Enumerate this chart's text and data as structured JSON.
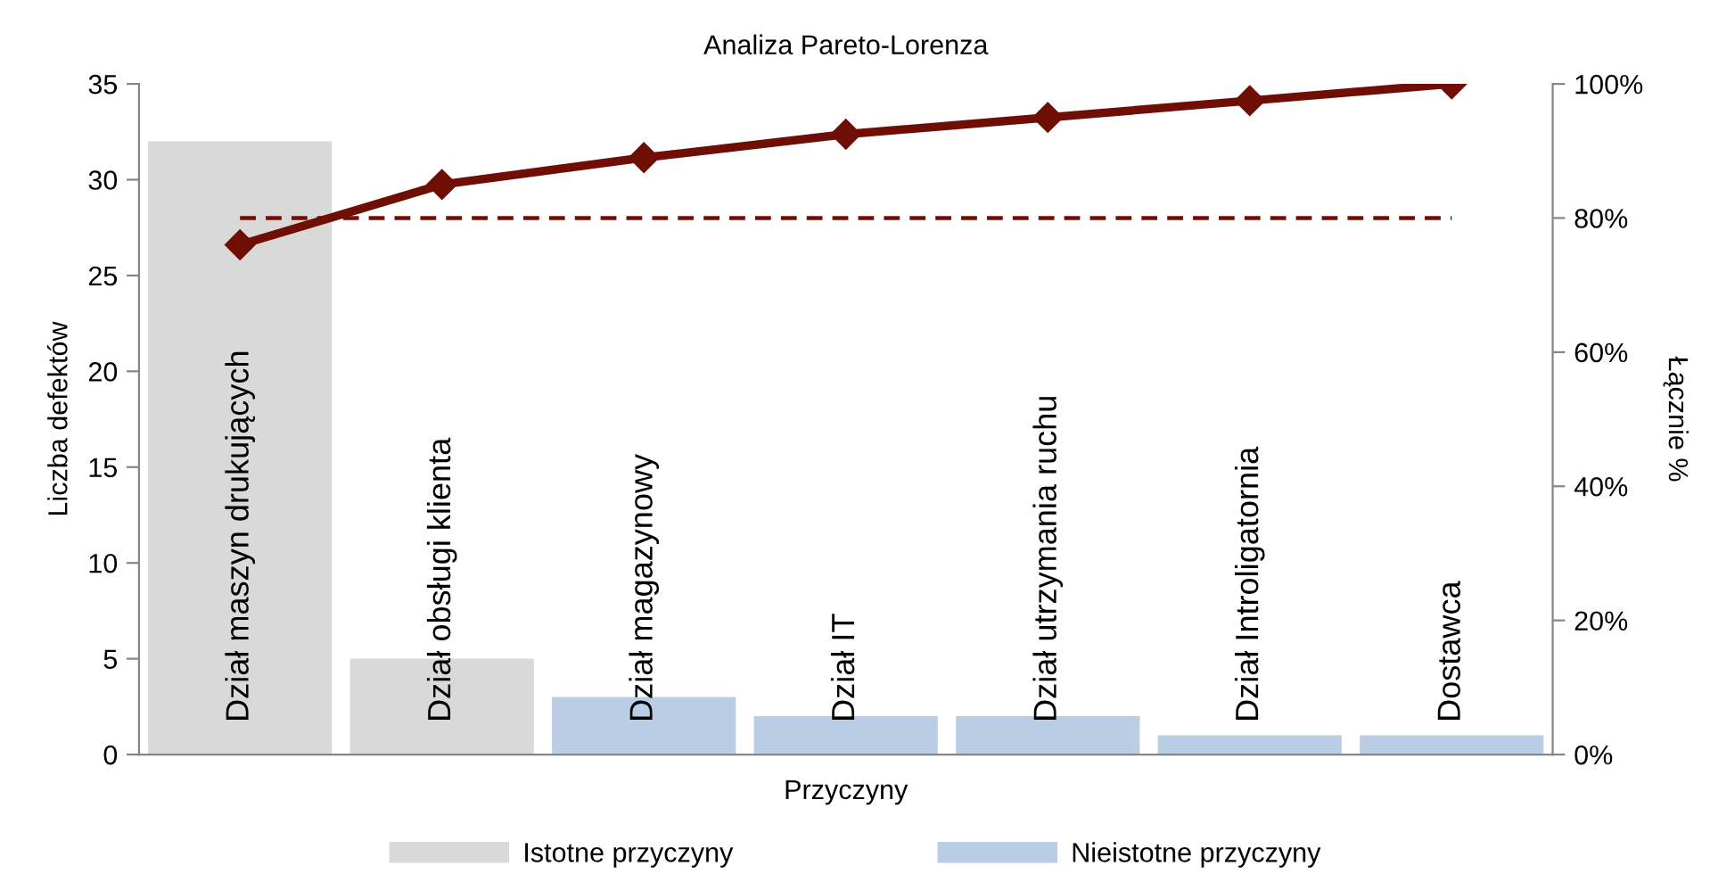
{
  "chart_data": {
    "type": "bar",
    "title": "Analiza Pareto-Lorenza",
    "xlabel": "Przyczyny",
    "ylabel": "Liczba defektów",
    "y2label": "Łącznie %",
    "categories": [
      "Dział maszyn drukujących",
      "Dział obsługi klienta",
      "Dział magazynowy",
      "Dział IT",
      "Dział utrzymania ruchu",
      "Dział Introligatornia",
      "Dostawca"
    ],
    "series": [
      {
        "name": "Istotne przyczyny",
        "color": "#d9d9d9",
        "values": [
          32,
          5,
          null,
          null,
          null,
          null,
          null
        ]
      },
      {
        "name": "Nieistotne przyczyny",
        "color": "#b9cde5",
        "values": [
          null,
          null,
          3,
          2,
          2,
          1,
          1
        ]
      },
      {
        "type": "line",
        "axis": "y2",
        "color": "#6f0e04",
        "marker": "diamond",
        "line_style": "solid",
        "values": [
          76,
          85,
          89,
          92.5,
          95,
          97.5,
          100
        ]
      }
    ],
    "ylim": [
      0,
      35
    ],
    "yticks": [
      0,
      5,
      10,
      15,
      20,
      25,
      30,
      35
    ],
    "y2lim": [
      0,
      100
    ],
    "y2ticks": [
      {
        "value": 0,
        "label": "0%"
      },
      {
        "value": 20,
        "label": "20%"
      },
      {
        "value": 40,
        "label": "40%"
      },
      {
        "value": 60,
        "label": "60%"
      },
      {
        "value": 80,
        "label": "80%"
      },
      {
        "value": 100,
        "label": "100%"
      }
    ],
    "ref_lines": [
      {
        "axis": "y2",
        "value": 80,
        "color": "#6f0e04",
        "line_style": "dashed"
      }
    ],
    "legend": "bottom"
  }
}
